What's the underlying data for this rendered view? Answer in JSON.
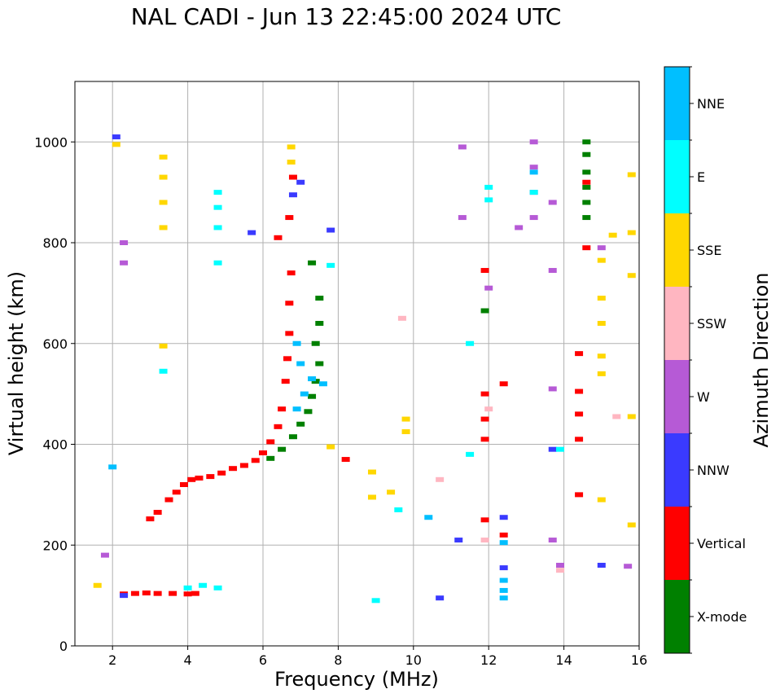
{
  "chart_data": {
    "type": "scatter",
    "title": "NAL CADI - Jun 13 22:45:00 2024 UTC",
    "xlabel": "Frequency (MHz)",
    "ylabel": "Virtual height (km)",
    "xlim": [
      1,
      16
    ],
    "ylim": [
      0,
      1120
    ],
    "xticks": [
      "2",
      "4",
      "6",
      "8",
      "10",
      "12",
      "14",
      "16"
    ],
    "yticks": [
      "0",
      "200",
      "400",
      "600",
      "800",
      "1000"
    ],
    "grid": true,
    "colorbar": {
      "label": "Azimuth Direction",
      "categories": [
        {
          "name": "X-mode",
          "color": "#008000"
        },
        {
          "name": "Vertical",
          "color": "#ff0000"
        },
        {
          "name": "NNW",
          "color": "#3a3aff"
        },
        {
          "name": "W",
          "color": "#b65ad6"
        },
        {
          "name": "SSW",
          "color": "#ffb6c1"
        },
        {
          "name": "SSE",
          "color": "#ffd700"
        },
        {
          "name": "E",
          "color": "#00ffff"
        },
        {
          "name": "NNE",
          "color": "#00bfff"
        }
      ]
    },
    "series": [
      {
        "name": "Vertical",
        "color": "#ff0000",
        "points": [
          [
            2.3,
            103
          ],
          [
            2.6,
            104
          ],
          [
            2.9,
            105
          ],
          [
            3.2,
            104
          ],
          [
            3.6,
            104
          ],
          [
            4.0,
            103
          ],
          [
            4.2,
            104
          ],
          [
            3.0,
            252
          ],
          [
            3.2,
            265
          ],
          [
            3.5,
            290
          ],
          [
            3.7,
            305
          ],
          [
            3.9,
            320
          ],
          [
            4.1,
            330
          ],
          [
            4.3,
            333
          ],
          [
            4.6,
            336
          ],
          [
            4.9,
            343
          ],
          [
            5.2,
            352
          ],
          [
            5.5,
            358
          ],
          [
            5.8,
            368
          ],
          [
            6.0,
            383
          ],
          [
            6.2,
            405
          ],
          [
            6.4,
            435
          ],
          [
            6.5,
            470
          ],
          [
            6.6,
            525
          ],
          [
            6.65,
            570
          ],
          [
            6.7,
            620
          ],
          [
            6.7,
            680
          ],
          [
            6.75,
            740
          ],
          [
            6.7,
            850
          ],
          [
            6.8,
            930
          ],
          [
            6.4,
            810
          ],
          [
            14.4,
            300
          ],
          [
            14.4,
            410
          ],
          [
            14.4,
            460
          ],
          [
            14.4,
            505
          ],
          [
            14.4,
            580
          ],
          [
            14.6,
            790
          ],
          [
            12.4,
            520
          ],
          [
            12.4,
            220
          ],
          [
            11.9,
            250
          ],
          [
            11.9,
            410
          ],
          [
            11.9,
            450
          ],
          [
            11.9,
            500
          ],
          [
            11.9,
            745
          ],
          [
            8.2,
            370
          ],
          [
            14.6,
            920
          ]
        ]
      },
      {
        "name": "X-mode",
        "color": "#008000",
        "points": [
          [
            6.2,
            372
          ],
          [
            6.5,
            390
          ],
          [
            6.8,
            415
          ],
          [
            7.0,
            440
          ],
          [
            7.2,
            465
          ],
          [
            7.3,
            495
          ],
          [
            7.4,
            525
          ],
          [
            7.5,
            560
          ],
          [
            7.4,
            600
          ],
          [
            7.5,
            640
          ],
          [
            7.5,
            690
          ],
          [
            7.3,
            760
          ],
          [
            14.6,
            850
          ],
          [
            14.6,
            880
          ],
          [
            14.6,
            910
          ],
          [
            14.6,
            940
          ],
          [
            14.6,
            975
          ],
          [
            14.6,
            1000
          ],
          [
            11.9,
            665
          ]
        ]
      },
      {
        "name": "NNW",
        "color": "#3a3aff",
        "points": [
          [
            2.3,
            100
          ],
          [
            5.7,
            820
          ],
          [
            6.8,
            895
          ],
          [
            7.0,
            920
          ],
          [
            7.8,
            825
          ],
          [
            10.7,
            95
          ],
          [
            11.2,
            210
          ],
          [
            12.4,
            255
          ],
          [
            12.4,
            155
          ],
          [
            15.0,
            160
          ],
          [
            13.7,
            390
          ],
          [
            2.1,
            1010
          ]
        ]
      },
      {
        "name": "W",
        "color": "#b65ad6",
        "points": [
          [
            13.2,
            850
          ],
          [
            13.2,
            900
          ],
          [
            13.2,
            950
          ],
          [
            13.2,
            1000
          ],
          [
            13.7,
            510
          ],
          [
            13.7,
            880
          ],
          [
            13.7,
            745
          ],
          [
            13.7,
            210
          ],
          [
            13.9,
            160
          ],
          [
            15.0,
            790
          ],
          [
            15.7,
            158
          ],
          [
            11.3,
            850
          ],
          [
            11.3,
            990
          ],
          [
            2.3,
            800
          ],
          [
            2.3,
            760
          ],
          [
            1.8,
            180
          ],
          [
            12.0,
            710
          ],
          [
            12.8,
            830
          ]
        ]
      },
      {
        "name": "SSW",
        "color": "#ffb6c1",
        "points": [
          [
            9.7,
            650
          ],
          [
            12.0,
            470
          ],
          [
            13.9,
            150
          ],
          [
            15.4,
            455
          ],
          [
            10.7,
            330
          ],
          [
            11.9,
            210
          ]
        ]
      },
      {
        "name": "SSE",
        "color": "#ffd700",
        "points": [
          [
            3.35,
            830
          ],
          [
            3.35,
            880
          ],
          [
            3.35,
            930
          ],
          [
            3.35,
            970
          ],
          [
            6.75,
            960
          ],
          [
            6.75,
            990
          ],
          [
            8.9,
            295
          ],
          [
            8.9,
            345
          ],
          [
            9.4,
            305
          ],
          [
            9.8,
            425
          ],
          [
            9.8,
            450
          ],
          [
            15.0,
            290
          ],
          [
            15.0,
            540
          ],
          [
            15.0,
            575
          ],
          [
            15.0,
            640
          ],
          [
            15.0,
            690
          ],
          [
            15.0,
            765
          ],
          [
            15.3,
            815
          ],
          [
            15.8,
            820
          ],
          [
            15.8,
            735
          ],
          [
            15.8,
            455
          ],
          [
            15.8,
            935
          ],
          [
            15.8,
            240
          ],
          [
            7.8,
            395
          ],
          [
            1.6,
            120
          ],
          [
            2.1,
            995
          ],
          [
            3.35,
            595
          ]
        ]
      },
      {
        "name": "E",
        "color": "#00ffff",
        "points": [
          [
            4.0,
            115
          ],
          [
            4.4,
            120
          ],
          [
            4.8,
            115
          ],
          [
            4.8,
            830
          ],
          [
            4.8,
            870
          ],
          [
            4.8,
            900
          ],
          [
            7.8,
            755
          ],
          [
            9.0,
            90
          ],
          [
            9.6,
            270
          ],
          [
            12.0,
            885
          ],
          [
            12.0,
            910
          ],
          [
            11.5,
            380
          ],
          [
            11.5,
            600
          ],
          [
            13.2,
            900
          ],
          [
            13.9,
            390
          ],
          [
            4.8,
            760
          ],
          [
            3.35,
            545
          ]
        ]
      },
      {
        "name": "NNE",
        "color": "#00bfff",
        "points": [
          [
            6.9,
            470
          ],
          [
            7.1,
            500
          ],
          [
            7.3,
            530
          ],
          [
            7.0,
            560
          ],
          [
            7.6,
            520
          ],
          [
            6.9,
            600
          ],
          [
            12.4,
            95
          ],
          [
            12.4,
            110
          ],
          [
            12.4,
            130
          ],
          [
            12.4,
            205
          ],
          [
            13.2,
            940
          ],
          [
            10.4,
            255
          ],
          [
            2.0,
            355
          ]
        ]
      }
    ]
  }
}
